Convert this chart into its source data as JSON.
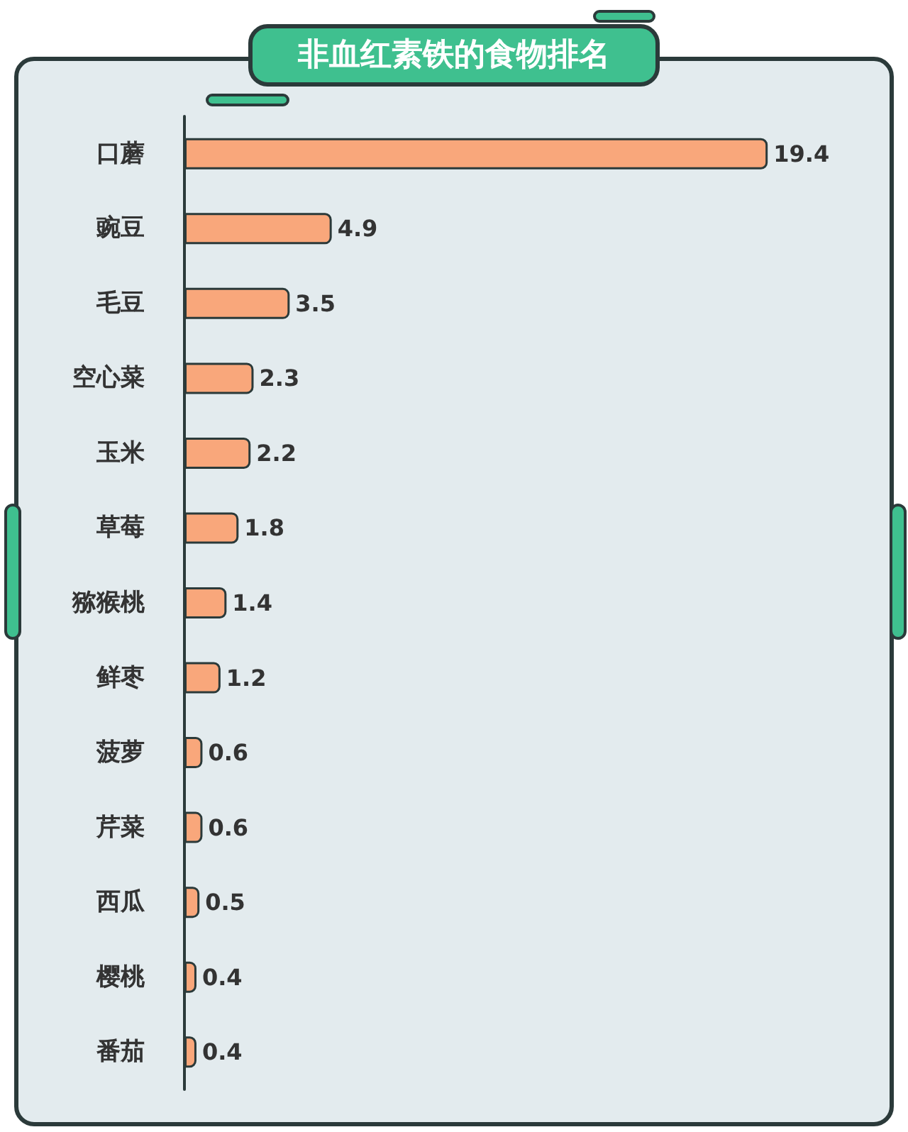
{
  "chart_data": {
    "type": "bar",
    "orientation": "horizontal",
    "title": "非血红素铁的食物排名",
    "categories": [
      "口蘑",
      "豌豆",
      "毛豆",
      "空心菜",
      "玉米",
      "草莓",
      "猕猴桃",
      "鲜枣",
      "菠萝",
      "芹菜",
      "西瓜",
      "樱桃",
      "番茄"
    ],
    "values": [
      19.4,
      4.9,
      3.5,
      2.3,
      2.2,
      1.8,
      1.4,
      1.2,
      0.6,
      0.6,
      0.5,
      0.4,
      0.4
    ],
    "color": "#f9a77b",
    "data_labels": true,
    "tick_labels": "y"
  }
}
